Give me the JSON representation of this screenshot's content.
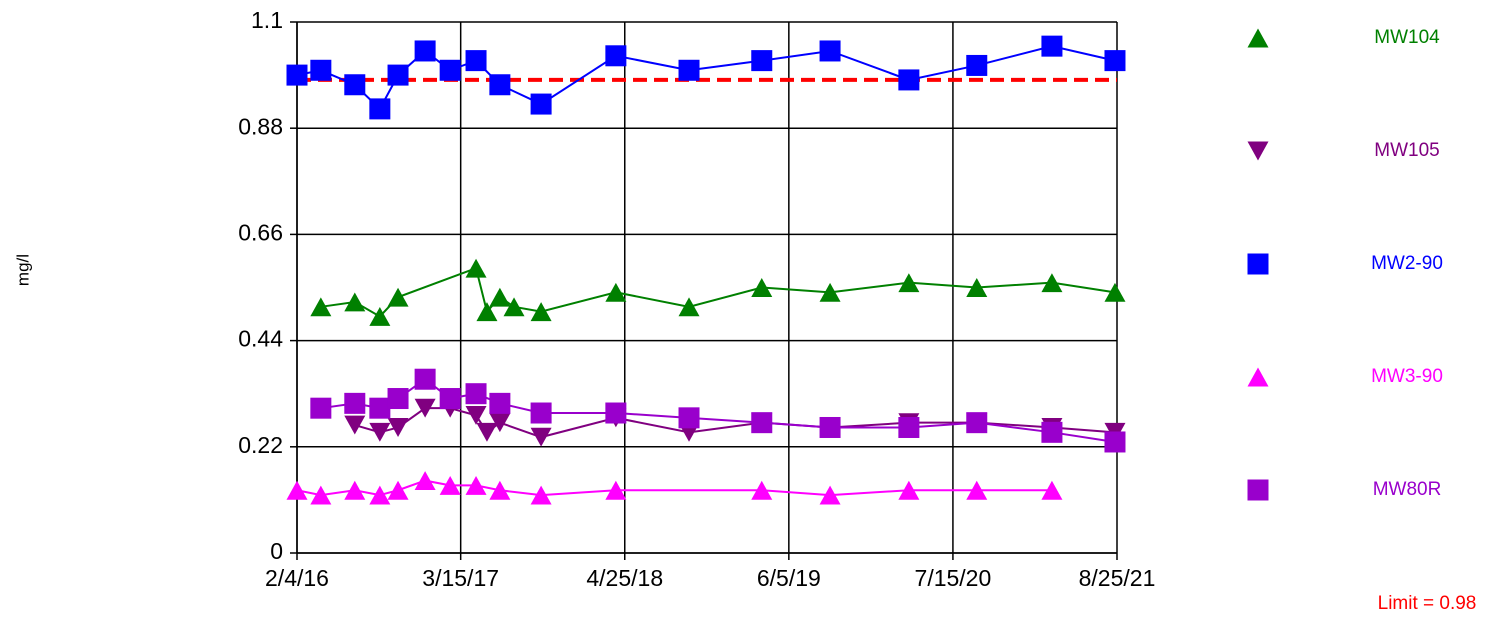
{
  "chart_data": {
    "type": "line",
    "ylabel": "mg/l",
    "xlim": [
      "2016-02-04",
      "2021-08-25"
    ],
    "xticks": [
      {
        "value": "2016-02-04",
        "label": "2/4/16"
      },
      {
        "value": "2017-03-15",
        "label": "3/15/17"
      },
      {
        "value": "2018-04-25",
        "label": "4/25/18"
      },
      {
        "value": "2019-06-05",
        "label": "6/5/19"
      },
      {
        "value": "2020-07-15",
        "label": "7/15/20"
      },
      {
        "value": "2021-08-25",
        "label": "8/25/21"
      }
    ],
    "ylim": [
      0,
      1.1
    ],
    "yticks": [
      0,
      0.22,
      0.44,
      0.66,
      0.88,
      1.1
    ],
    "grid": true,
    "legend": "right",
    "limit": {
      "value": 0.98,
      "label": "Limit = 0.98",
      "color": "#ff0000"
    },
    "series": [
      {
        "name": "MW104",
        "color": "#008000",
        "marker": "triangle-up",
        "x": [
          "2016-04-03",
          "2016-06-26",
          "2016-08-27",
          "2016-10-11",
          "2017-04-22",
          "2017-05-19",
          "2017-06-20",
          "2017-07-25",
          "2017-09-30",
          "2018-04-03",
          "2018-10-01",
          "2019-03-30",
          "2019-09-15",
          "2020-03-28",
          "2020-09-12",
          "2021-03-17",
          "2021-08-20"
        ],
        "values": [
          0.51,
          0.52,
          0.49,
          0.53,
          0.59,
          0.5,
          0.53,
          0.51,
          0.5,
          0.54,
          0.51,
          0.55,
          0.54,
          0.56,
          0.55,
          0.56,
          0.54
        ]
      },
      {
        "name": "MW105",
        "color": "#800080",
        "marker": "triangle-down",
        "x": [
          "2016-06-26",
          "2016-08-27",
          "2016-10-11",
          "2016-12-17",
          "2017-02-17",
          "2017-04-22",
          "2017-05-19",
          "2017-06-20",
          "2017-09-30",
          "2018-04-03",
          "2018-10-01",
          "2019-03-30",
          "2019-09-15",
          "2020-03-28",
          "2020-09-12",
          "2021-03-17",
          "2021-08-20"
        ],
        "values": [
          0.265,
          0.25,
          0.26,
          0.3,
          0.3,
          0.285,
          0.25,
          0.27,
          0.24,
          0.28,
          0.25,
          0.27,
          0.26,
          0.27,
          0.27,
          0.26,
          0.25
        ]
      },
      {
        "name": "MW2-90",
        "color": "#0000ff",
        "marker": "square",
        "x": [
          "2016-02-04",
          "2016-04-03",
          "2016-06-26",
          "2016-08-27",
          "2016-10-11",
          "2016-12-17",
          "2017-02-17",
          "2017-04-22",
          "2017-06-20",
          "2017-09-30",
          "2018-04-03",
          "2018-10-01",
          "2019-03-30",
          "2019-09-15",
          "2020-03-28",
          "2020-09-12",
          "2021-03-17",
          "2021-08-20"
        ],
        "values": [
          0.99,
          1.0,
          0.97,
          0.92,
          0.99,
          1.04,
          1.0,
          1.02,
          0.97,
          0.93,
          1.03,
          1.0,
          1.02,
          1.04,
          0.98,
          1.01,
          1.05,
          1.02
        ]
      },
      {
        "name": "MW3-90",
        "color": "#ff00ff",
        "marker": "triangle-up",
        "x": [
          "2016-02-04",
          "2016-04-03",
          "2016-06-26",
          "2016-08-27",
          "2016-10-11",
          "2016-12-17",
          "2017-02-17",
          "2017-04-22",
          "2017-06-20",
          "2017-09-30",
          "2018-04-03",
          "2019-03-30",
          "2019-09-15",
          "2020-03-28",
          "2020-09-12",
          "2021-03-17"
        ],
        "values": [
          0.13,
          0.12,
          0.13,
          0.12,
          0.13,
          0.15,
          0.14,
          0.14,
          0.13,
          0.12,
          0.13,
          0.13,
          0.12,
          0.13,
          0.13,
          0.13
        ]
      },
      {
        "name": "MW80R",
        "color": "#9900cc",
        "marker": "square",
        "x": [
          "2016-04-03",
          "2016-06-26",
          "2016-08-27",
          "2016-10-11",
          "2016-12-17",
          "2017-02-17",
          "2017-04-22",
          "2017-06-20",
          "2017-09-30",
          "2018-04-03",
          "2018-10-01",
          "2019-03-30",
          "2019-09-15",
          "2020-03-28",
          "2020-09-12",
          "2021-03-17",
          "2021-08-20"
        ],
        "values": [
          0.3,
          0.31,
          0.3,
          0.32,
          0.36,
          0.32,
          0.33,
          0.31,
          0.29,
          0.29,
          0.28,
          0.27,
          0.26,
          0.26,
          0.27,
          0.25,
          0.23
        ]
      }
    ]
  }
}
